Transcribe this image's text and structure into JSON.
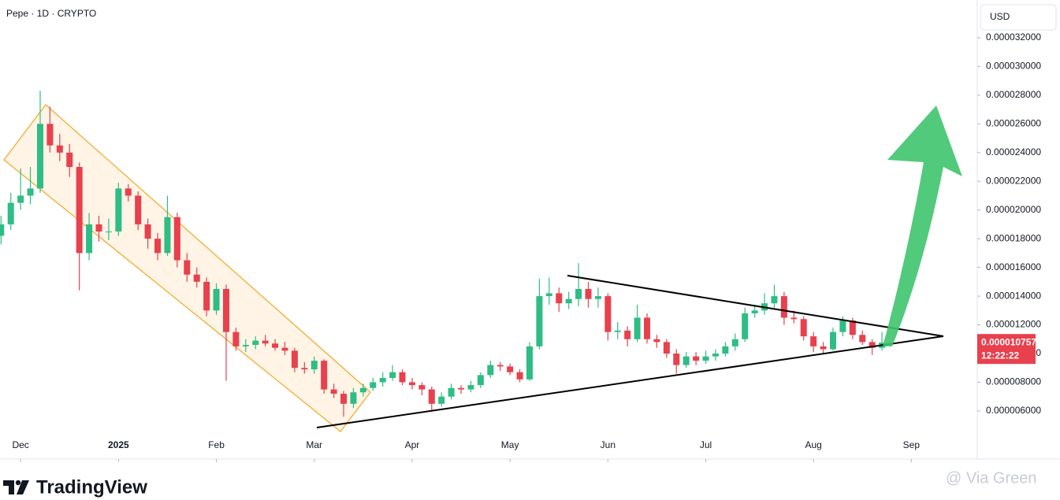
{
  "chart_data": {
    "type": "candlestick",
    "title": "Pepe · 1D · CRYPTO",
    "currency": "USD",
    "brand": "TradingView",
    "watermark": "@ Via Green",
    "price_tag_label": "0.000010757",
    "countdown": "12:22:22",
    "up_color": "#2ebd85",
    "down_color": "#e8404d",
    "ylim": [
      2.65e-06,
      3.463e-05
    ],
    "yticks": [
      {
        "value": 6e-06,
        "label": "0.000006000"
      },
      {
        "value": 8e-06,
        "label": "0.000008000"
      },
      {
        "value": 1e-05,
        "label": "0.000010000"
      },
      {
        "value": 1.2e-05,
        "label": "0.000012000"
      },
      {
        "value": 1.4e-05,
        "label": "0.000014000"
      },
      {
        "value": 1.6e-05,
        "label": "0.000016000"
      },
      {
        "value": 1.8e-05,
        "label": "0.000018000"
      },
      {
        "value": 2e-05,
        "label": "0.000020000"
      },
      {
        "value": 2.2e-05,
        "label": "0.000022000"
      },
      {
        "value": 2.4e-05,
        "label": "0.000024000"
      },
      {
        "value": 2.6e-05,
        "label": "0.000026000"
      },
      {
        "value": 2.8e-05,
        "label": "0.000028000"
      },
      {
        "value": 3e-05,
        "label": "0.000030000"
      },
      {
        "value": 3.2e-05,
        "label": "0.000032000"
      }
    ],
    "xticks": [
      {
        "value": 2,
        "label": "Dec"
      },
      {
        "value": 12,
        "label": "2025"
      },
      {
        "value": 22,
        "label": "Feb"
      },
      {
        "value": 32,
        "label": "Mar"
      },
      {
        "value": 42,
        "label": "Apr"
      },
      {
        "value": 52,
        "label": "May"
      },
      {
        "value": 62,
        "label": "Jun"
      },
      {
        "value": 72,
        "label": "Jul"
      },
      {
        "value": 83,
        "label": "Aug"
      },
      {
        "value": 93,
        "label": "Sep"
      }
    ],
    "open": [
      1.82e-05,
      1.9e-05,
      2.05e-05,
      2.1e-05,
      2.15e-05,
      2.6e-05,
      2.45e-05,
      2.4e-05,
      2.3e-05,
      1.7e-05,
      1.9e-05,
      1.85e-05,
      1.85e-05,
      2.15e-05,
      2.1e-05,
      1.9e-05,
      1.8e-05,
      1.7e-05,
      1.95e-05,
      1.65e-05,
      1.55e-05,
      1.5e-05,
      1.3e-05,
      1.45e-05,
      1.15e-05,
      1.05e-05,
      1.06e-05,
      1.09e-05,
      1.07e-05,
      1.04e-05,
      1.02e-05,
      9e-06,
      8.9e-06,
      9.5e-06,
      7.5e-06,
      7.2e-06,
      6.5e-06,
      7.3e-06,
      7.6e-06,
      8e-06,
      8.3e-06,
      8.7e-06,
      8e-06,
      7.8e-06,
      7.5e-06,
      6.5e-06,
      7e-06,
      7.6e-06,
      7.5e-06,
      7.8e-06,
      8.5e-06,
      9.2e-06,
      9.1e-06,
      8.7e-06,
      8.2e-06,
      1.05e-05,
      1.4e-05,
      1.42e-05,
      1.35e-05,
      1.38e-05,
      1.45e-05,
      1.38e-05,
      1.4e-05,
      1.15e-05,
      1.16e-05,
      1.1e-05,
      1.25e-05,
      1.1e-05,
      1.08e-05,
      1e-05,
      9.2e-06,
      9.8e-06,
      9.5e-06,
      9.8e-06,
      1e-05,
      1.05e-05,
      1.1e-05,
      1.28e-05,
      1.3e-05,
      1.35e-05,
      1.4e-05,
      1.25e-05,
      1.24e-05,
      1.12e-05,
      1.05e-05,
      1.03e-05,
      1.15e-05,
      1.23e-05,
      1.13e-05,
      1.08e-05,
      1.04e-05
    ],
    "high": [
      1.96e-05,
      2.12e-05,
      2.29e-05,
      2.3e-05,
      2.83e-05,
      2.72e-05,
      2.53e-05,
      2.46e-05,
      2.33e-05,
      1.98e-05,
      1.96e-05,
      1.94e-05,
      2.19e-05,
      2.18e-05,
      2.13e-05,
      1.94e-05,
      1.84e-05,
      2.1e-05,
      1.98e-05,
      1.7e-05,
      1.6e-05,
      1.53e-05,
      1.49e-05,
      1.48e-05,
      1.18e-05,
      1.1e-05,
      1.12e-05,
      1.13e-05,
      1.1e-05,
      1.08e-05,
      1.04e-05,
      9.4e-06,
      9.8e-06,
      9.6e-06,
      7.9e-06,
      7.4e-06,
      7.6e-06,
      7.9e-06,
      8.3e-06,
      8.7e-06,
      9.2e-06,
      8.9e-06,
      8.3e-06,
      8e-06,
      7.7e-06,
      7.3e-06,
      7.9e-06,
      7.8e-06,
      8.1e-06,
      8.7e-06,
      9.5e-06,
      9.4e-06,
      9.3e-06,
      8.9e-06,
      1.08e-05,
      1.52e-05,
      1.53e-05,
      1.46e-05,
      1.43e-05,
      1.63e-05,
      1.5e-05,
      1.46e-05,
      1.42e-05,
      1.22e-05,
      1.19e-05,
      1.34e-05,
      1.28e-05,
      1.13e-05,
      1.1e-05,
      1.03e-05,
      1.01e-05,
      1.01e-05,
      1.02e-05,
      1.03e-05,
      1.08e-05,
      1.14e-05,
      1.32e-05,
      1.34e-05,
      1.42e-05,
      1.48e-05,
      1.43e-05,
      1.3e-05,
      1.26e-05,
      1.15e-05,
      1.08e-05,
      1.18e-05,
      1.26e-05,
      1.25e-05,
      1.16e-05,
      1.1e-05,
      1.15e-05
    ],
    "low": [
      1.76e-05,
      1.86e-05,
      2e-05,
      2.04e-05,
      2.12e-05,
      2.4e-05,
      2.34e-05,
      2.23e-05,
      1.44e-05,
      1.65e-05,
      1.78e-05,
      1.79e-05,
      1.82e-05,
      2.06e-05,
      1.86e-05,
      1.73e-05,
      1.65e-05,
      1.68e-05,
      1.6e-05,
      1.5e-05,
      1.46e-05,
      1.26e-05,
      1.27e-05,
      8.1e-06,
      1.02e-05,
      1.01e-05,
      1.03e-05,
      1.05e-05,
      1.02e-05,
      9.9e-06,
      8.7e-06,
      8.6e-06,
      8.6e-06,
      7.2e-06,
      6.9e-06,
      5.6e-06,
      6.2e-06,
      7e-06,
      7.4e-06,
      7.7e-06,
      8.1e-06,
      7.8e-06,
      7.5e-06,
      7.1e-06,
      6e-06,
      6.3e-06,
      6.8e-06,
      7.2e-06,
      7.3e-06,
      7.6e-06,
      8.3e-06,
      8.8e-06,
      8.5e-06,
      8e-06,
      8.1e-06,
      1.03e-05,
      1.34e-05,
      1.29e-05,
      1.31e-05,
      1.33e-05,
      1.32e-05,
      1.32e-05,
      1.09e-05,
      1.1e-05,
      1.05e-05,
      1.08e-05,
      1.07e-05,
      1.04e-05,
      9.7e-06,
      8.6e-06,
      9e-06,
      9.2e-06,
      9.3e-06,
      9.5e-06,
      9.8e-06,
      1.02e-05,
      1.08e-05,
      1.25e-05,
      1.27e-05,
      1.32e-05,
      1.2e-05,
      1.21e-05,
      1.09e-05,
      1.01e-05,
      1e-05,
      1.02e-05,
      1.12e-05,
      1.1e-05,
      1.06e-05,
      9.9e-06,
      1.02e-05
    ],
    "close": [
      1.9e-05,
      2.05e-05,
      2.1e-05,
      2.15e-05,
      2.6e-05,
      2.45e-05,
      2.4e-05,
      2.3e-05,
      1.7e-05,
      1.9e-05,
      1.85e-05,
      1.85e-05,
      2.15e-05,
      2.1e-05,
      1.9e-05,
      1.8e-05,
      1.7e-05,
      1.95e-05,
      1.65e-05,
      1.55e-05,
      1.5e-05,
      1.3e-05,
      1.45e-05,
      1.15e-05,
      1.05e-05,
      1.06e-05,
      1.09e-05,
      1.07e-05,
      1.04e-05,
      1.02e-05,
      9e-06,
      8.9e-06,
      9.5e-06,
      7.5e-06,
      7.2e-06,
      6.5e-06,
      7.3e-06,
      7.6e-06,
      8e-06,
      8.3e-06,
      8.7e-06,
      8e-06,
      7.8e-06,
      7.5e-06,
      6.5e-06,
      7e-06,
      7.6e-06,
      7.5e-06,
      7.8e-06,
      8.5e-06,
      9.2e-06,
      9.1e-06,
      8.7e-06,
      8.2e-06,
      1.05e-05,
      1.4e-05,
      1.42e-05,
      1.35e-05,
      1.38e-05,
      1.45e-05,
      1.38e-05,
      1.4e-05,
      1.15e-05,
      1.16e-05,
      1.1e-05,
      1.25e-05,
      1.1e-05,
      1.08e-05,
      1e-05,
      9.2e-06,
      9.8e-06,
      9.5e-06,
      9.8e-06,
      1e-05,
      1.05e-05,
      1.1e-05,
      1.28e-05,
      1.3e-05,
      1.35e-05,
      1.4e-05,
      1.25e-05,
      1.24e-05,
      1.12e-05,
      1.05e-05,
      1.03e-05,
      1.15e-05,
      1.23e-05,
      1.13e-05,
      1.08e-05,
      1.04e-05,
      1.0757e-05
    ]
  }
}
